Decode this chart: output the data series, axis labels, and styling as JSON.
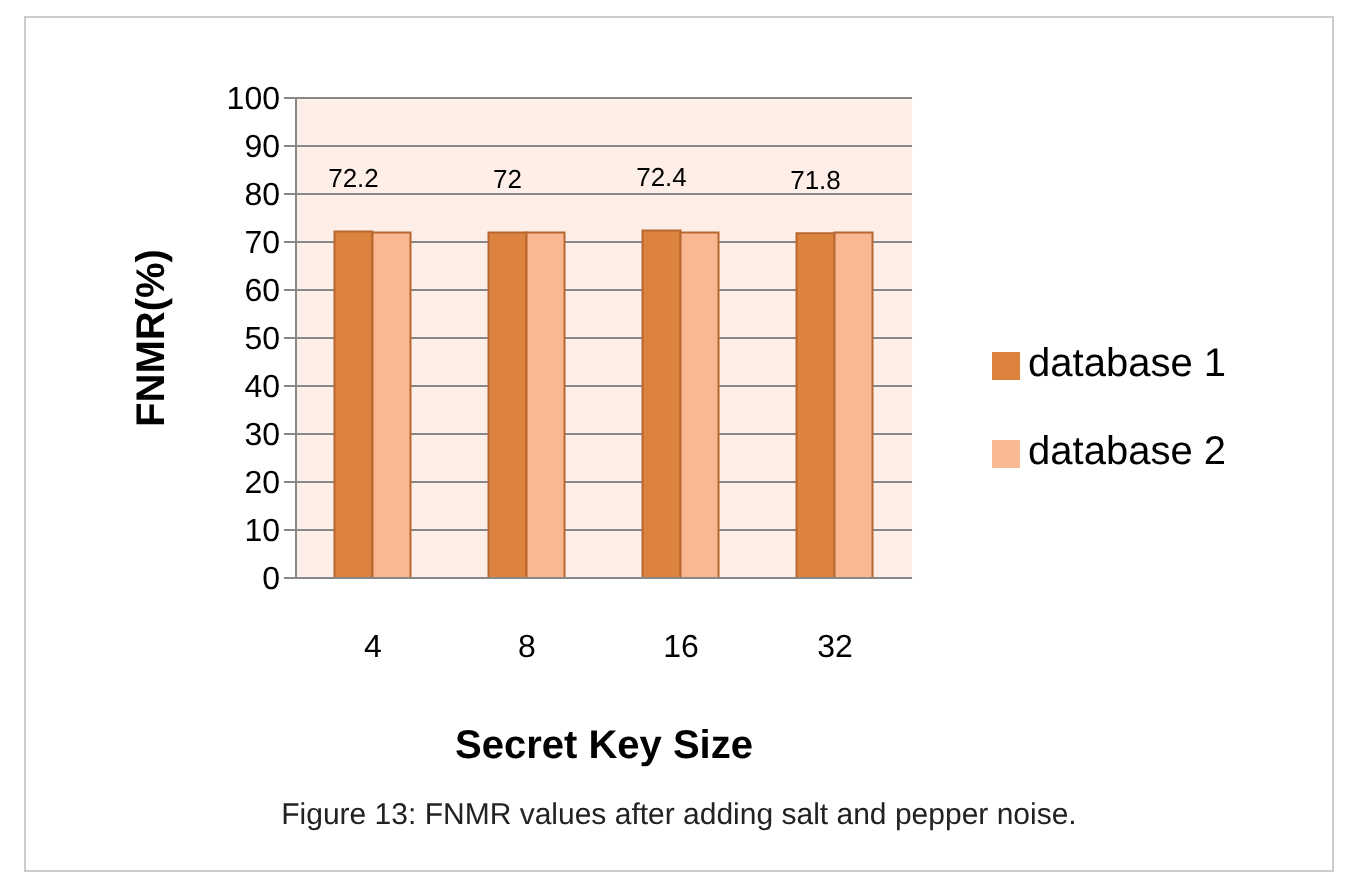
{
  "chart_data": {
    "type": "bar",
    "xlabel": "Secret Key Size",
    "ylabel": "FNMR(%)",
    "categories": [
      "4",
      "8",
      "16",
      "32"
    ],
    "series": [
      {
        "name": "database 1",
        "color": "#dc843f",
        "values": [
          72.2,
          72,
          72.4,
          71.8
        ],
        "value_labels": [
          "72.2",
          "72",
          "72.4",
          "71.8"
        ]
      },
      {
        "name": "database 2",
        "color": "#f9b892",
        "values": [
          72,
          72,
          72,
          72
        ]
      }
    ],
    "ylim": [
      0,
      100
    ],
    "yticks": [
      0,
      10,
      20,
      30,
      40,
      50,
      60,
      70,
      80,
      90,
      100
    ],
    "grid": "y",
    "legend": "right",
    "annotations": [
      "Figure 13: FNMR values after adding salt and pepper noise."
    ]
  }
}
